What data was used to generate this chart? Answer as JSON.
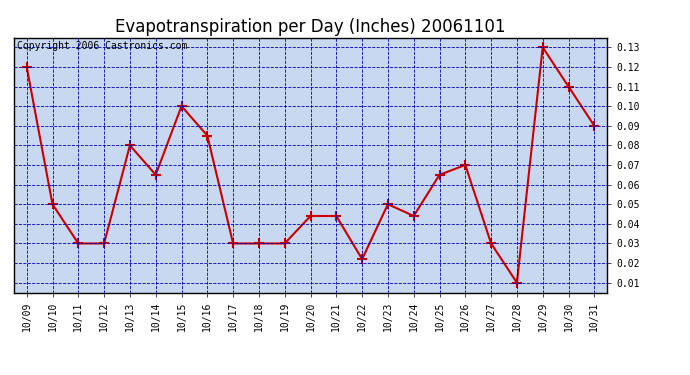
{
  "title": "Evapotranspiration per Day (Inches) 20061101",
  "copyright": "Copyright 2006 Castronics.com",
  "x_labels": [
    "10/09",
    "10/10",
    "10/11",
    "10/12",
    "10/13",
    "10/14",
    "10/15",
    "10/16",
    "10/17",
    "10/18",
    "10/19",
    "10/20",
    "10/21",
    "10/22",
    "10/23",
    "10/24",
    "10/25",
    "10/26",
    "10/27",
    "10/28",
    "10/29",
    "10/30",
    "10/31"
  ],
  "y_values": [
    0.12,
    0.05,
    0.03,
    0.03,
    0.08,
    0.065,
    0.1,
    0.085,
    0.03,
    0.03,
    0.03,
    0.044,
    0.044,
    0.022,
    0.05,
    0.044,
    0.065,
    0.07,
    0.03,
    0.01,
    0.13,
    0.11,
    0.09
  ],
  "line_color": "#cc0000",
  "marker": "+",
  "marker_size": 7,
  "marker_linewidth": 1.5,
  "line_width": 1.5,
  "plot_bg_color": "#c8d8f0",
  "outer_bg_color": "#ffffff",
  "grid_color": "#0000bb",
  "border_color": "#000000",
  "ylim": [
    0.005,
    0.135
  ],
  "yticks": [
    0.01,
    0.02,
    0.03,
    0.04,
    0.05,
    0.06,
    0.07,
    0.08,
    0.09,
    0.1,
    0.11,
    0.12,
    0.13
  ],
  "title_fontsize": 12,
  "tick_fontsize": 7,
  "copyright_fontsize": 7
}
